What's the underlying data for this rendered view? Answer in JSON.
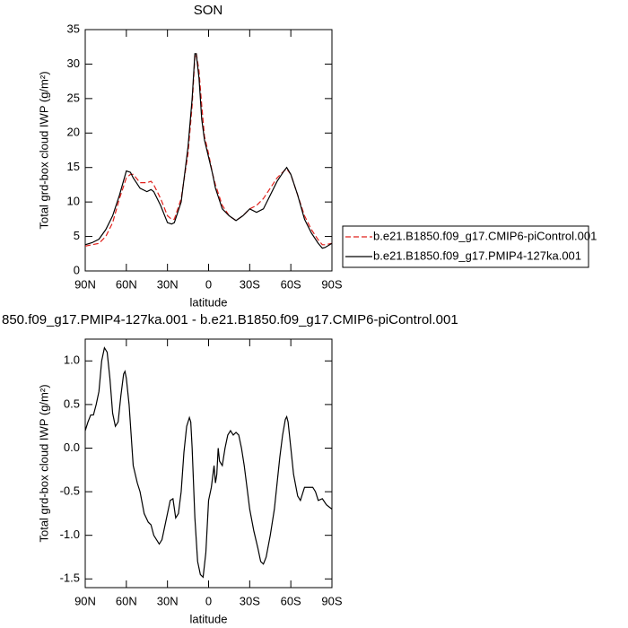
{
  "chart_data": [
    {
      "type": "line",
      "title": "SON",
      "xlabel": "latitude",
      "ylabel": "Total grd-box cloud IWP (g/m²)",
      "xlim": [
        90,
        -90
      ],
      "ylim": [
        0,
        35
      ],
      "xticks": [
        {
          "value": 90,
          "label": "90N"
        },
        {
          "value": 60,
          "label": "60N"
        },
        {
          "value": 30,
          "label": "30N"
        },
        0,
        {
          "value": -30,
          "label": "30S"
        },
        {
          "value": -60,
          "label": "60S"
        },
        {
          "value": -90,
          "label": "90S"
        }
      ],
      "yticks": [
        0,
        5,
        10,
        15,
        20,
        25,
        30,
        35
      ],
      "legend": "right",
      "x": [
        90,
        85,
        80,
        75,
        70,
        65,
        60,
        57,
        55,
        50,
        45,
        42,
        40,
        35,
        30,
        27,
        25,
        20,
        15,
        12,
        10,
        9,
        7,
        5,
        3,
        0,
        -3,
        -5,
        -10,
        -15,
        -20,
        -25,
        -30,
        -35,
        -40,
        -45,
        -50,
        -55,
        -57,
        -60,
        -65,
        -70,
        -75,
        -80,
        -83,
        -85,
        -90
      ],
      "series": [
        {
          "name": "b.e21.B1850.f09_g17.CMIP6-piControl.001",
          "color": "#e0201b",
          "line_style": "dashed",
          "values": [
            3.6,
            3.8,
            4.0,
            5.0,
            7.0,
            10.5,
            13.5,
            14.0,
            14.0,
            12.8,
            12.8,
            13.0,
            12.5,
            10.5,
            8.0,
            7.5,
            7.5,
            10.5,
            17.0,
            24.0,
            31.0,
            31.6,
            29.0,
            24.0,
            19.5,
            17.0,
            14.0,
            12.5,
            9.5,
            8.0,
            7.3,
            8.0,
            9.0,
            9.5,
            10.5,
            12.0,
            13.5,
            14.5,
            14.8,
            14.0,
            11.0,
            8.0,
            6.0,
            4.5,
            3.8,
            3.8,
            4.0
          ]
        },
        {
          "name": "b.e21.B1850.f09_g17.PMIP4-127ka.001",
          "color": "#000000",
          "line_style": "solid",
          "values": [
            3.8,
            4.1,
            4.6,
            6.0,
            8.0,
            11.0,
            14.5,
            14.3,
            13.5,
            12.0,
            11.5,
            11.8,
            11.5,
            9.5,
            7.0,
            6.8,
            7.0,
            10.0,
            18.0,
            25.0,
            31.5,
            31.5,
            28.0,
            22.0,
            19.0,
            16.5,
            14.0,
            12.0,
            9.0,
            8.0,
            7.3,
            8.0,
            9.0,
            8.5,
            9.0,
            11.0,
            13.0,
            14.5,
            15.0,
            14.0,
            11.0,
            7.5,
            5.5,
            4.0,
            3.3,
            3.4,
            4.0
          ]
        }
      ]
    },
    {
      "type": "line",
      "title": "850.f09_g17.PMIP4-127ka.001 - b.e21.B1850.f09_g17.CMIP6-piControl.001",
      "xlabel": "latitude",
      "ylabel": "Total grd-box cloud IWP (g/m²)",
      "xlim": [
        90,
        -90
      ],
      "ylim": [
        -1.6,
        1.25
      ],
      "xticks": [
        {
          "value": 90,
          "label": "90N"
        },
        {
          "value": 60,
          "label": "60N"
        },
        {
          "value": 30,
          "label": "30N"
        },
        0,
        {
          "value": -30,
          "label": "30S"
        },
        {
          "value": -60,
          "label": "60S"
        },
        {
          "value": -90,
          "label": "90S"
        }
      ],
      "yticks": [
        {
          "value": -1.5,
          "label": "-1.5"
        },
        {
          "value": -1,
          "label": "-1.0"
        },
        -0.5,
        {
          "value": 0,
          "label": "0.0"
        },
        0.5,
        {
          "value": 1,
          "label": "1.0"
        }
      ],
      "x": [
        90,
        88,
        86,
        84,
        82,
        80,
        78,
        76,
        74,
        72,
        70,
        68,
        66,
        64,
        62,
        61,
        60,
        58,
        55,
        52,
        50,
        47,
        44,
        42,
        40,
        38,
        36,
        34,
        32,
        30,
        28,
        26,
        24,
        22,
        20,
        18,
        16,
        14,
        13,
        12,
        10,
        8,
        6,
        4,
        2,
        0,
        -2,
        -4,
        -5,
        -6,
        -7,
        -8,
        -10,
        -12,
        -14,
        -16,
        -18,
        -20,
        -22,
        -24,
        -26,
        -28,
        -30,
        -33,
        -36,
        -38,
        -40,
        -42,
        -45,
        -48,
        -50,
        -52,
        -54,
        -56,
        -57,
        -58,
        -60,
        -62,
        -65,
        -67,
        -70,
        -73,
        -76,
        -78,
        -80,
        -83,
        -86,
        -90
      ],
      "series": [
        {
          "color": "#000000",
          "line_style": "solid",
          "values": [
            0.2,
            0.3,
            0.38,
            0.38,
            0.5,
            0.65,
            1.0,
            1.15,
            1.1,
            0.8,
            0.4,
            0.25,
            0.3,
            0.6,
            0.85,
            0.88,
            0.8,
            0.5,
            -0.2,
            -0.4,
            -0.5,
            -0.75,
            -0.85,
            -0.88,
            -1.0,
            -1.05,
            -1.1,
            -1.05,
            -0.9,
            -0.75,
            -0.6,
            -0.58,
            -0.8,
            -0.75,
            -0.5,
            -0.05,
            0.25,
            0.35,
            0.3,
            0.0,
            -0.8,
            -1.3,
            -1.45,
            -1.48,
            -1.2,
            -0.6,
            -0.45,
            -0.2,
            -0.4,
            -0.3,
            0.0,
            -0.15,
            -0.2,
            0.0,
            0.15,
            0.2,
            0.15,
            0.18,
            0.15,
            0.0,
            -0.2,
            -0.45,
            -0.7,
            -0.95,
            -1.15,
            -1.3,
            -1.33,
            -1.25,
            -1.0,
            -0.7,
            -0.4,
            -0.1,
            0.15,
            0.33,
            0.36,
            0.3,
            0.0,
            -0.3,
            -0.55,
            -0.6,
            -0.45,
            -0.45,
            -0.45,
            -0.5,
            -0.6,
            -0.58,
            -0.65,
            -0.7
          ]
        }
      ]
    }
  ]
}
